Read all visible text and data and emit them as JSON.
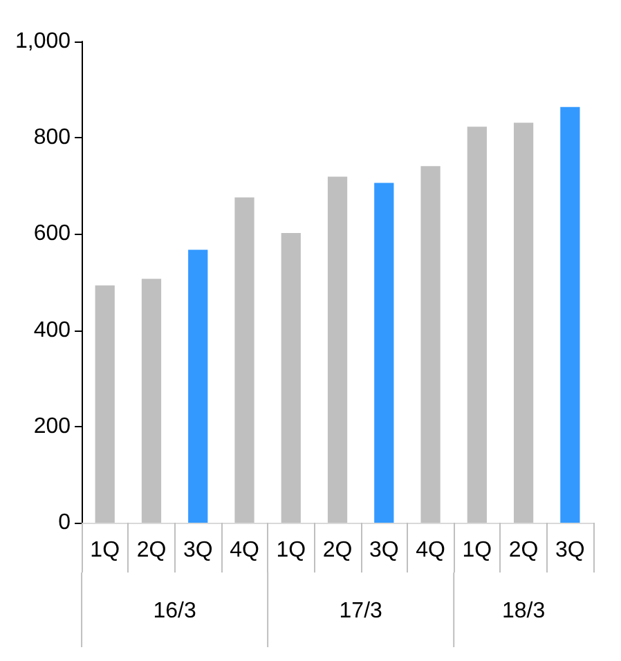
{
  "chart_data": {
    "type": "bar",
    "categories": [
      "1Q",
      "2Q",
      "3Q",
      "4Q",
      "1Q",
      "2Q",
      "3Q",
      "4Q",
      "1Q",
      "2Q",
      "3Q"
    ],
    "values": [
      493,
      507,
      567,
      676,
      602,
      719,
      706,
      741,
      823,
      831,
      864
    ],
    "colors": [
      "#bfbfbf",
      "#bfbfbf",
      "#3399ff",
      "#bfbfbf",
      "#bfbfbf",
      "#bfbfbf",
      "#3399ff",
      "#bfbfbf",
      "#bfbfbf",
      "#bfbfbf",
      "#3399ff"
    ],
    "annotations": [
      "16/3",
      "17/3",
      "18/3"
    ],
    "ylim": [
      0,
      1000
    ],
    "yticks": [
      0,
      200,
      400,
      600,
      800,
      {
        "value": 1000,
        "label": "1,000"
      }
    ],
    "grid": false
  }
}
